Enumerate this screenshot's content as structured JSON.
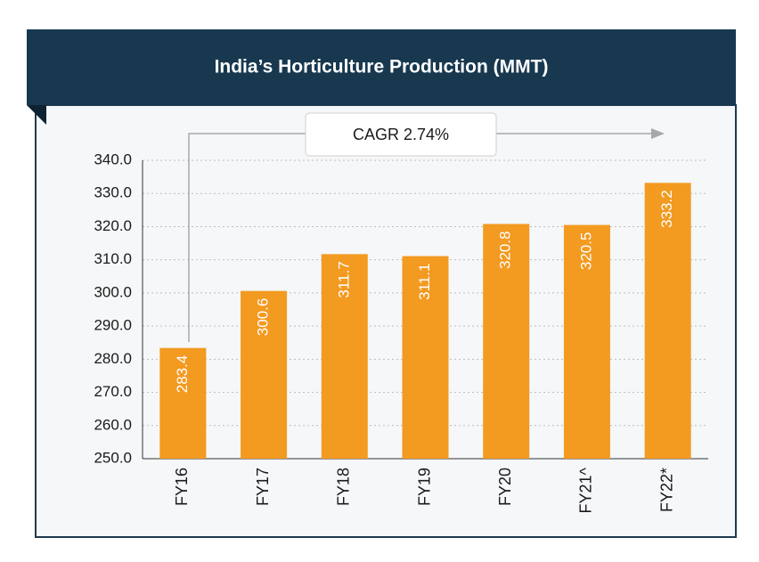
{
  "chart_data": {
    "type": "bar",
    "title": "India’s Horticulture Production (MMT)",
    "annotation": "CAGR 2.74%",
    "categories": [
      "FY16",
      "FY17",
      "FY18",
      "FY19",
      "FY20",
      "FY21^",
      "FY22*"
    ],
    "values": [
      283.4,
      300.6,
      311.7,
      311.1,
      320.8,
      320.5,
      333.2
    ],
    "color": "#f39a21",
    "ylim": [
      250,
      340
    ],
    "yticks": [
      {
        "value": 250,
        "label": "250.0"
      },
      {
        "value": 260,
        "label": "260.0"
      },
      {
        "value": 270,
        "label": "270.0"
      },
      {
        "value": 280,
        "label": "280.0"
      },
      {
        "value": 290,
        "label": "290.0"
      },
      {
        "value": 300,
        "label": "300.0"
      },
      {
        "value": 310,
        "label": "310.0"
      },
      {
        "value": 320,
        "label": "320.0"
      },
      {
        "value": 330,
        "label": "330.0"
      },
      {
        "value": 340,
        "label": "340.0"
      }
    ],
    "grid": true
  }
}
